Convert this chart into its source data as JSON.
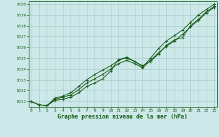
{
  "title": "Graphe pression niveau de la mer (hPa)",
  "background_color": "#cce8e8",
  "grid_color": "#aacccc",
  "line_color": "#1a5c1a",
  "x_values": [
    0,
    1,
    2,
    3,
    4,
    5,
    6,
    7,
    8,
    9,
    10,
    11,
    12,
    13,
    14,
    15,
    16,
    17,
    18,
    19,
    20,
    21,
    22,
    23
  ],
  "series1": [
    1011.0,
    1010.7,
    1010.6,
    1011.1,
    1011.2,
    1011.4,
    1011.8,
    1012.4,
    1012.7,
    1013.1,
    1013.8,
    1014.9,
    1015.0,
    1014.7,
    1014.3,
    1014.7,
    1015.4,
    1016.2,
    1016.7,
    1016.9,
    1018.0,
    1018.6,
    1019.3,
    1019.8
  ],
  "series2": [
    1011.0,
    1010.7,
    1010.6,
    1011.2,
    1011.4,
    1011.6,
    1012.1,
    1012.7,
    1013.1,
    1013.5,
    1014.0,
    1014.5,
    1014.8,
    1014.5,
    1014.1,
    1014.8,
    1015.5,
    1016.1,
    1016.6,
    1017.2,
    1017.9,
    1018.5,
    1019.2,
    1019.7
  ],
  "series3": [
    1011.0,
    1010.7,
    1010.6,
    1011.3,
    1011.5,
    1011.8,
    1012.4,
    1013.0,
    1013.5,
    1013.9,
    1014.3,
    1014.8,
    1015.1,
    1014.7,
    1014.2,
    1015.0,
    1015.9,
    1016.6,
    1017.1,
    1017.6,
    1018.3,
    1019.0,
    1019.5,
    1020.0
  ],
  "ylim": [
    1010.5,
    1020.25
  ],
  "yticks": [
    1011,
    1012,
    1013,
    1014,
    1015,
    1016,
    1017,
    1018,
    1019,
    1020
  ],
  "xticks": [
    0,
    1,
    2,
    3,
    4,
    5,
    6,
    7,
    8,
    9,
    10,
    11,
    12,
    13,
    14,
    15,
    16,
    17,
    18,
    19,
    20,
    21,
    22,
    23
  ],
  "marker": "+",
  "markersize": 3,
  "linewidth": 0.8
}
